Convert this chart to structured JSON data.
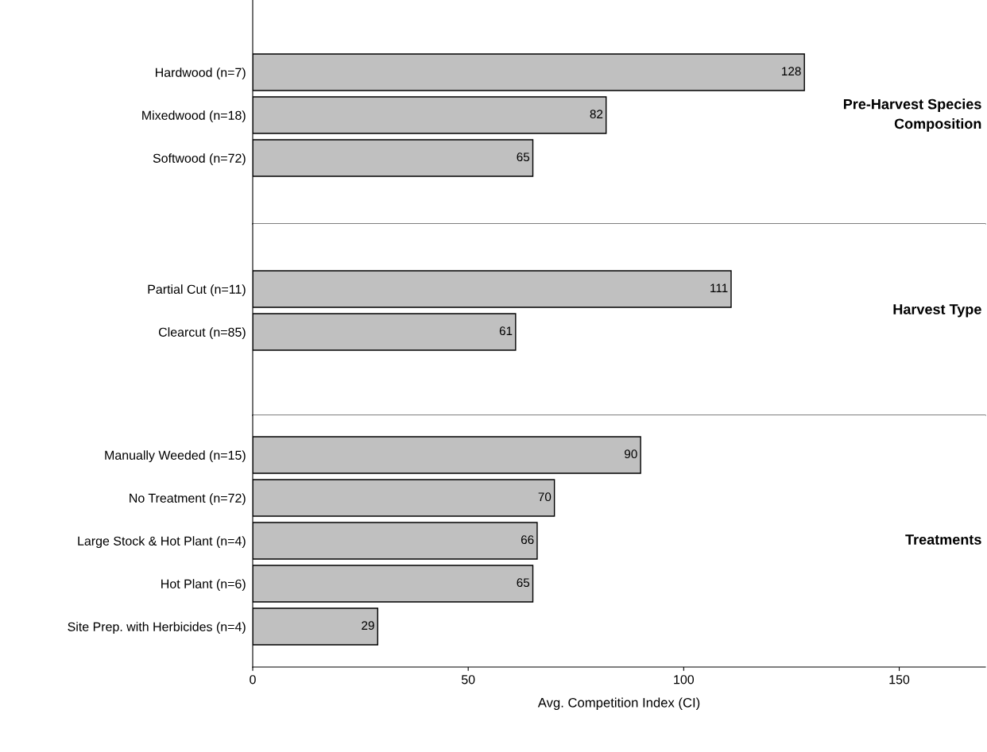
{
  "chart_data": [
    {
      "type": "bar",
      "orientation": "horizontal",
      "categories": [
        "Hardwood (n=7)",
        "Mixedwood (n=18)",
        "Softwood (n=72)"
      ],
      "values": [
        128,
        82,
        65
      ],
      "color": "#c0c0c0",
      "data_labels": true,
      "tick_labels": "y",
      "grid": false,
      "annotations": [
        "Pre-Harvest Species\nComposition"
      ]
    },
    {
      "type": "bar",
      "orientation": "horizontal",
      "categories": [
        "Partial Cut (n=11)",
        "Clearcut (n=85)"
      ],
      "values": [
        111,
        61
      ],
      "color": "#c0c0c0",
      "data_labels": true,
      "tick_labels": "y",
      "grid": false,
      "annotations": [
        "Harvest Type"
      ]
    },
    {
      "type": "bar",
      "orientation": "horizontal",
      "categories": [
        "Manually Weeded (n=15)",
        "No Treatment (n=72)",
        "Large Stock & Hot Plant (n=4)",
        "Hot Plant (n=6)",
        "Site Prep. with Herbicides (n=4)"
      ],
      "values": [
        90,
        70,
        66,
        65,
        29
      ],
      "color": "#c0c0c0",
      "data_labels": true,
      "xlim": [
        0,
        170
      ],
      "xticks": [
        0,
        50,
        100,
        150
      ],
      "xlabel": "Avg. Competition Index (CI)",
      "grid": false,
      "annotations": [
        "Treatments"
      ]
    }
  ]
}
